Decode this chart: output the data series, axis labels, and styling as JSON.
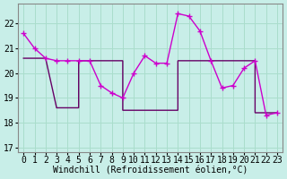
{
  "line1_x": [
    0,
    1,
    2,
    3,
    4,
    5,
    6,
    7,
    8,
    9,
    10,
    11,
    12,
    13,
    14,
    15,
    16,
    17,
    18,
    19,
    20,
    21,
    22,
    23
  ],
  "line1_y": [
    21.6,
    21.0,
    20.6,
    20.5,
    20.5,
    20.5,
    20.5,
    19.5,
    19.2,
    19.0,
    20.0,
    20.7,
    20.4,
    20.4,
    22.4,
    22.3,
    21.7,
    20.5,
    19.4,
    19.5,
    20.2,
    20.5,
    18.3,
    18.4
  ],
  "line1_color": "#cc00cc",
  "line2_x": [
    0,
    2,
    3,
    5,
    5,
    9,
    9,
    14,
    14,
    21,
    21,
    23
  ],
  "line2_y": [
    20.6,
    20.6,
    18.6,
    18.6,
    20.5,
    20.5,
    18.5,
    18.5,
    20.5,
    20.5,
    18.4,
    18.4
  ],
  "line2_color": "#660066",
  "background_color": "#c8eee8",
  "grid_color": "#aaddcc",
  "xlabel": "Windchill (Refroidissement éolien,°C)",
  "xlabel_fontsize": 7,
  "ylabel_values": [
    17,
    18,
    19,
    20,
    21,
    22
  ],
  "xlim": [
    -0.5,
    23.5
  ],
  "ylim": [
    16.8,
    22.8
  ],
  "tick_fontsize": 7,
  "xtick_labels": [
    "0",
    "1",
    "2",
    "3",
    "4",
    "5",
    "6",
    "7",
    "8",
    "9",
    "10",
    "11",
    "12",
    "13",
    "14",
    "15",
    "16",
    "17",
    "18",
    "19",
    "20",
    "21",
    "22",
    "23"
  ]
}
